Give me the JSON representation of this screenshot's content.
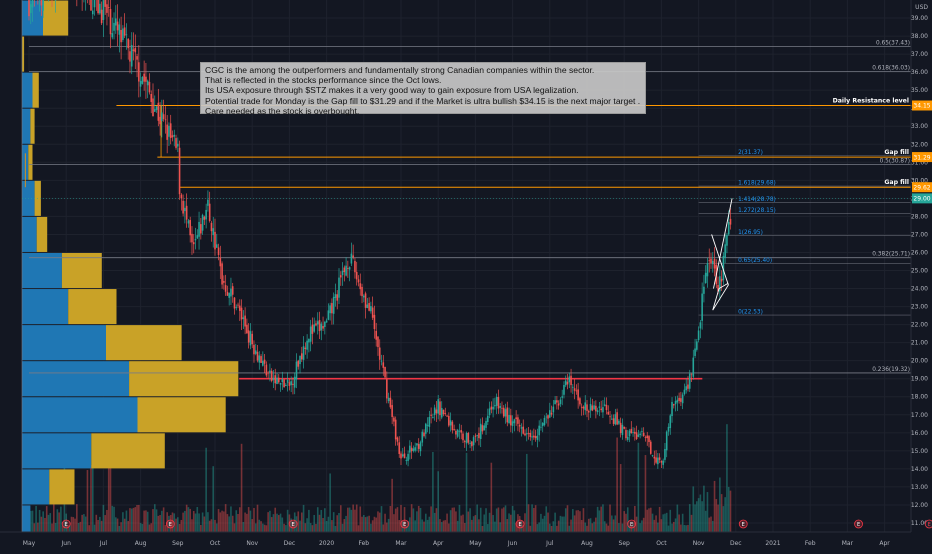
{
  "chart_data": {
    "type": "candlestick",
    "currency": "USD",
    "ylim": [
      10.5,
      40.0
    ],
    "y_ticks": [
      "11.00",
      "12.00",
      "13.00",
      "14.00",
      "15.00",
      "16.00",
      "17.00",
      "18.00",
      "19.00",
      "20.00",
      "21.00",
      "22.00",
      "23.00",
      "24.00",
      "25.00",
      "26.00",
      "27.00",
      "28.00",
      "29.00",
      "30.00",
      "31.00",
      "32.00",
      "33.00",
      "34.00",
      "35.00",
      "36.00",
      "37.00",
      "38.00",
      "39.00"
    ],
    "x_ticks": [
      "May",
      "Jun",
      "Jul",
      "Aug",
      "Sep",
      "Oct",
      "Nov",
      "Dec",
      "2020",
      "Feb",
      "Mar",
      "Apr",
      "May",
      "Jun",
      "Jul",
      "Aug",
      "Sep",
      "Oct",
      "Nov",
      "Dec",
      "2021",
      "Feb",
      "Mar",
      "Apr"
    ],
    "price_path": [
      {
        "t": 0,
        "p": 40.0
      },
      {
        "t": 1,
        "p": 41.5
      },
      {
        "t": 2,
        "p": 39.5
      },
      {
        "t": 3,
        "p": 36.0
      },
      {
        "t": 3.4,
        "p": 34.0
      },
      {
        "t": 4,
        "p": 31.5
      },
      {
        "t": 4.05,
        "p": 29.6
      },
      {
        "t": 4.4,
        "p": 26.0
      },
      {
        "t": 4.8,
        "p": 28.6
      },
      {
        "t": 5.2,
        "p": 24.5
      },
      {
        "t": 5.6,
        "p": 23.0
      },
      {
        "t": 6,
        "p": 21.0
      },
      {
        "t": 6.5,
        "p": 19.0
      },
      {
        "t": 7,
        "p": 18.5
      },
      {
        "t": 7.5,
        "p": 21.5
      },
      {
        "t": 8,
        "p": 22.0
      },
      {
        "t": 8.6,
        "p": 25.8
      },
      {
        "t": 9.2,
        "p": 22.5
      },
      {
        "t": 9.6,
        "p": 18.5
      },
      {
        "t": 10,
        "p": 14.5
      },
      {
        "t": 10.5,
        "p": 15.5
      },
      {
        "t": 11,
        "p": 17.5
      },
      {
        "t": 11.5,
        "p": 16.0
      },
      {
        "t": 12,
        "p": 15.5
      },
      {
        "t": 12.5,
        "p": 17.8
      },
      {
        "t": 13,
        "p": 16.5
      },
      {
        "t": 13.6,
        "p": 16.0
      },
      {
        "t": 14,
        "p": 17.0
      },
      {
        "t": 14.5,
        "p": 18.8
      },
      {
        "t": 15,
        "p": 17.2
      },
      {
        "t": 15.5,
        "p": 17.5
      },
      {
        "t": 16,
        "p": 16.0
      },
      {
        "t": 16.5,
        "p": 15.8
      },
      {
        "t": 17,
        "p": 14.2
      },
      {
        "t": 17.3,
        "p": 17.5
      },
      {
        "t": 17.7,
        "p": 18.5
      },
      {
        "t": 18,
        "p": 21.5
      },
      {
        "t": 18.1,
        "p": 23.5
      },
      {
        "t": 18.3,
        "p": 25.5
      },
      {
        "t": 18.55,
        "p": 24.0
      },
      {
        "t": 18.8,
        "p": 27.0
      },
      {
        "t": 18.9,
        "p": 29.0
      }
    ],
    "fib_retracement_levels": [
      {
        "label": "0.65(37.43)",
        "value": 37.43
      },
      {
        "label": "0.618(36.03)",
        "value": 36.03
      },
      {
        "label": "0.5(30.87)",
        "value": 30.87
      },
      {
        "label": "0.382(25.71)",
        "value": 25.71
      },
      {
        "label": "0.236(19.32)",
        "value": 19.32
      }
    ],
    "fib_extension_levels": [
      {
        "label": "2(31.37)",
        "value": 31.37
      },
      {
        "label": "1.618(29.68)",
        "value": 29.68
      },
      {
        "label": "1.414(28.78)",
        "value": 28.78
      },
      {
        "label": "1.272(28.15)",
        "value": 28.15
      },
      {
        "label": "1(26.95)",
        "value": 26.95
      },
      {
        "label": "0.65(25.40)",
        "value": 25.4
      },
      {
        "label": "0(22.53)",
        "value": 22.53
      }
    ],
    "horizontal_lines": [
      {
        "label": "Daily Resistance level",
        "value": 34.15,
        "color": "#ff9800"
      },
      {
        "label": "Gap fill",
        "value": 31.29,
        "color": "#ff9800"
      },
      {
        "label": "Gap fill",
        "value": 29.62,
        "color": "#ff9800"
      },
      {
        "label": "",
        "value": 19.0,
        "color": "#f23645"
      }
    ],
    "price_badges": [
      {
        "text": "34.15",
        "value": 34.15,
        "color": "#ff9800"
      },
      {
        "text": "31.29",
        "value": 31.29,
        "color": "#ff9800"
      },
      {
        "text": "29.62",
        "value": 29.62,
        "color": "#ff9800"
      },
      {
        "text": "29.00",
        "value": 29.0,
        "color": "#26a69a"
      }
    ],
    "volume_profile": [
      {
        "price_low": 38.0,
        "price_high": 40.0,
        "down": 0.1,
        "up": 0.12
      },
      {
        "price_low": 36.0,
        "price_high": 38.0,
        "down": 0.0,
        "up": 0.01
      },
      {
        "price_low": 34.0,
        "price_high": 36.0,
        "down": 0.05,
        "up": 0.03
      },
      {
        "price_low": 32.0,
        "price_high": 34.0,
        "down": 0.04,
        "up": 0.02
      },
      {
        "price_low": 30.0,
        "price_high": 32.0,
        "down": 0.03,
        "up": 0.02
      },
      {
        "price_low": 28.0,
        "price_high": 30.0,
        "down": 0.06,
        "up": 0.03
      },
      {
        "price_low": 26.0,
        "price_high": 28.0,
        "down": 0.07,
        "up": 0.05
      },
      {
        "price_low": 24.0,
        "price_high": 26.0,
        "down": 0.19,
        "up": 0.19
      },
      {
        "price_low": 22.0,
        "price_high": 24.0,
        "down": 0.22,
        "up": 0.23
      },
      {
        "price_low": 20.0,
        "price_high": 22.0,
        "down": 0.4,
        "up": 0.36
      },
      {
        "price_low": 18.0,
        "price_high": 20.0,
        "down": 0.51,
        "up": 0.52
      },
      {
        "price_low": 16.0,
        "price_high": 18.0,
        "down": 0.55,
        "up": 0.42
      },
      {
        "price_low": 14.0,
        "price_high": 16.0,
        "down": 0.33,
        "up": 0.35
      },
      {
        "price_low": 12.0,
        "price_high": 14.0,
        "down": 0.13,
        "up": 0.12
      },
      {
        "price_low": 10.5,
        "price_high": 12.0,
        "down": 0.04,
        "up": 0.0
      }
    ],
    "event_markers": [
      1.0,
      3.8,
      7.1,
      10.1,
      13.2,
      16.2,
      19.2,
      22.3
    ],
    "dark_event_marker": 24.2,
    "annotation": [
      "CGC is the among the outperformers and fundamentally strong Canadian companies within the sector.",
      "That is reflected in the stocks performance since the Oct lows.",
      "Its USA exposure through $STZ makes it a very good way to gain exposure from USA legalization.",
      "Potential trade for Monday is the Gap fill to $31.29 and if the Market is ultra bullish $34.15 is the next major target .",
      "Care needed as the stock is overbought."
    ],
    "colors": {
      "background": "#131722",
      "up": "#26a69a",
      "down": "#ef5350",
      "fib": "#787b86",
      "fib_ext": "#2196f3",
      "profile_down": "#1f77b4",
      "profile_up": "#c9a227",
      "resistance": "#ff9800",
      "support": "#f23645"
    }
  }
}
